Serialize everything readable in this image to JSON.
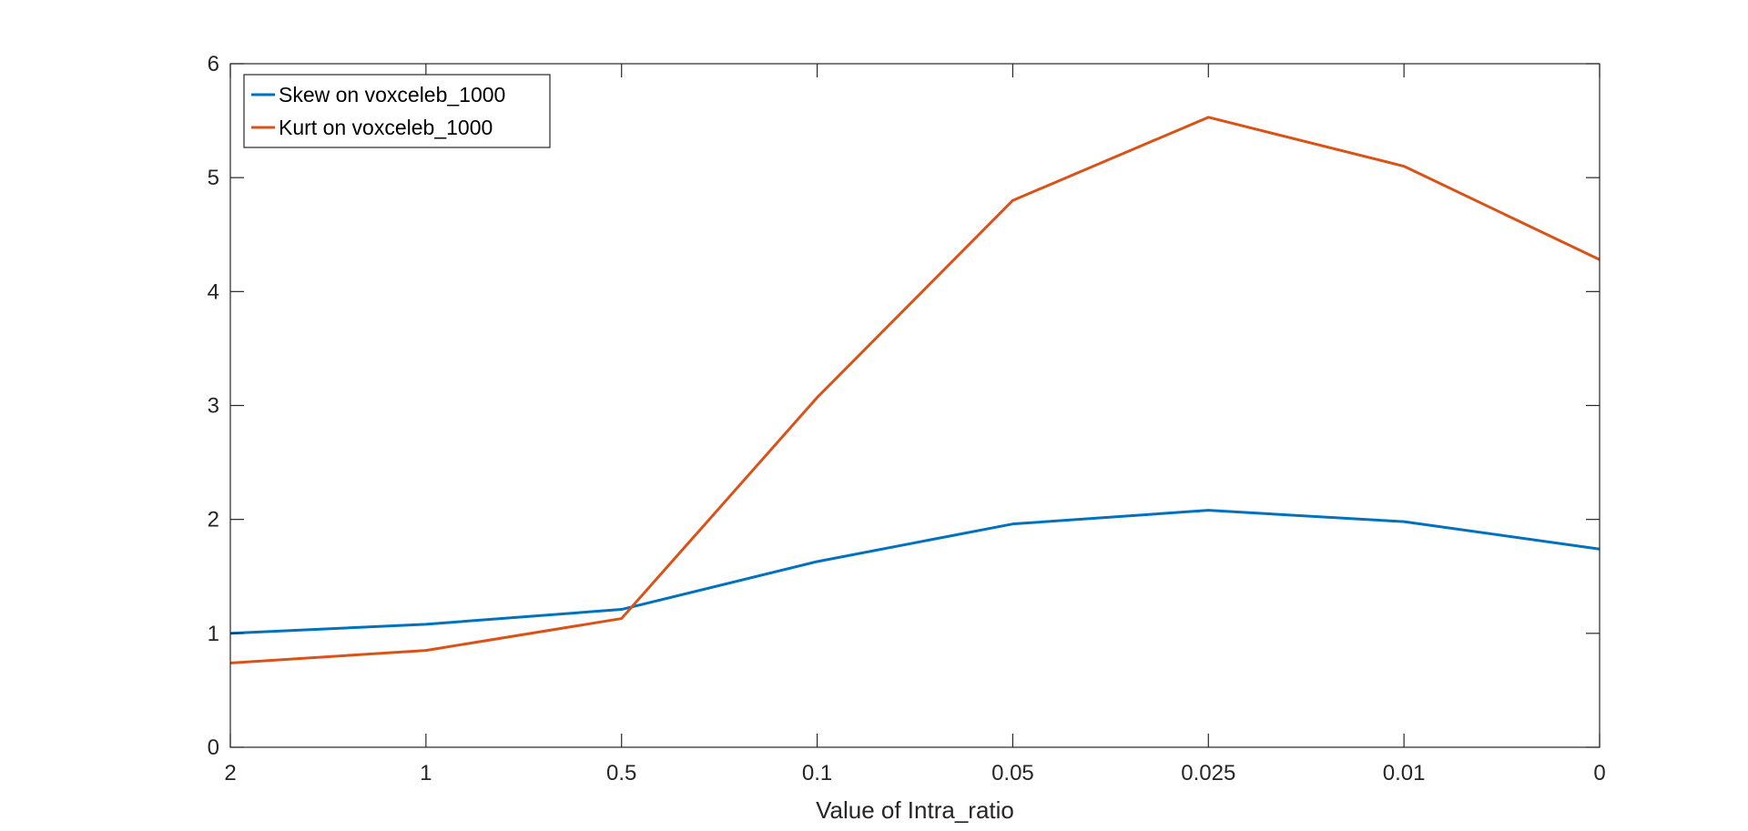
{
  "chart_data": {
    "type": "line",
    "title": "",
    "xlabel": "Value of Intra_ratio",
    "ylabel": "",
    "categories": [
      "2",
      "1",
      "0.5",
      "0.1",
      "0.05",
      "0.025",
      "0.01",
      "0"
    ],
    "ylim": [
      0,
      6
    ],
    "yticks": [
      0,
      1,
      2,
      3,
      4,
      5,
      6
    ],
    "grid": false,
    "legend_position": "top-left",
    "series": [
      {
        "name": "Skew on voxceleb_1000",
        "color": "#0072BD",
        "values": [
          1.0,
          1.08,
          1.21,
          1.63,
          1.96,
          2.08,
          1.98,
          1.74
        ]
      },
      {
        "name": "Kurt on voxceleb_1000",
        "color": "#D95319",
        "values": [
          0.74,
          0.85,
          1.13,
          3.07,
          4.8,
          5.53,
          5.1,
          4.28
        ]
      }
    ]
  }
}
